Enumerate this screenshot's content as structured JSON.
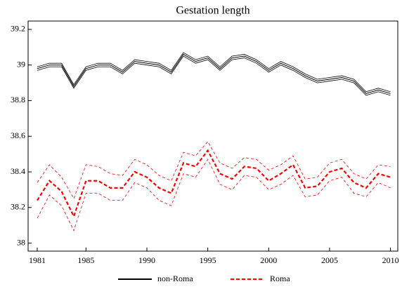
{
  "chart_data": {
    "type": "line",
    "title": "Gestation length",
    "x": [
      1981,
      1982,
      1983,
      1984,
      1985,
      1986,
      1987,
      1988,
      1989,
      1990,
      1991,
      1992,
      1993,
      1994,
      1995,
      1996,
      1997,
      1998,
      1999,
      2000,
      2001,
      2002,
      2003,
      2004,
      2005,
      2006,
      2007,
      2008,
      2009,
      2010
    ],
    "xlim": [
      1980.25,
      2010.6
    ],
    "xticks": [
      1981,
      1985,
      1990,
      1995,
      2000,
      2005,
      2010
    ],
    "ylim": [
      37.955,
      39.247
    ],
    "yticks": [
      38,
      38.2,
      38.4,
      38.6,
      38.8,
      39,
      39.2
    ],
    "legend": "bottom",
    "series": [
      {
        "name": "non-Roma",
        "color": "#000000",
        "dashed": false,
        "values": [
          38.98,
          39.0,
          39.0,
          38.88,
          38.98,
          39.0,
          39.0,
          38.96,
          39.02,
          39.01,
          39.0,
          38.96,
          39.06,
          39.02,
          39.04,
          38.98,
          39.04,
          39.05,
          39.02,
          38.97,
          39.01,
          38.98,
          38.94,
          38.91,
          38.92,
          38.93,
          38.91,
          38.84,
          38.86,
          38.84
        ],
        "upper": [
          38.99,
          39.01,
          39.01,
          38.89,
          38.99,
          39.01,
          39.01,
          38.97,
          39.03,
          39.02,
          39.01,
          38.97,
          39.07,
          39.03,
          39.05,
          38.99,
          39.05,
          39.06,
          39.03,
          38.98,
          39.02,
          38.99,
          38.95,
          38.92,
          38.93,
          38.94,
          38.92,
          38.85,
          38.87,
          38.85
        ],
        "lower": [
          38.97,
          38.99,
          38.99,
          38.87,
          38.97,
          38.99,
          38.99,
          38.95,
          39.01,
          39.0,
          38.99,
          38.95,
          39.05,
          39.01,
          39.03,
          38.97,
          39.03,
          39.04,
          39.01,
          38.96,
          39.0,
          38.97,
          38.93,
          38.9,
          38.91,
          38.92,
          38.9,
          38.83,
          38.85,
          38.83
        ]
      },
      {
        "name": "Roma",
        "color": "#ff0000",
        "dashed": true,
        "values": [
          38.24,
          38.35,
          38.29,
          38.15,
          38.35,
          38.35,
          38.31,
          38.31,
          38.4,
          38.37,
          38.31,
          38.28,
          38.45,
          38.43,
          38.52,
          38.39,
          38.36,
          38.43,
          38.42,
          38.35,
          38.39,
          38.44,
          38.31,
          38.32,
          38.4,
          38.42,
          38.34,
          38.31,
          38.39,
          38.37
        ],
        "upper": [
          38.34,
          38.44,
          38.37,
          38.25,
          38.44,
          38.43,
          38.39,
          38.38,
          38.47,
          38.44,
          38.38,
          38.35,
          38.51,
          38.49,
          38.57,
          38.45,
          38.42,
          38.48,
          38.47,
          38.41,
          38.44,
          38.49,
          38.36,
          38.37,
          38.45,
          38.47,
          38.39,
          38.36,
          38.44,
          38.43
        ],
        "lower": [
          38.14,
          38.27,
          38.21,
          38.07,
          38.28,
          38.28,
          38.24,
          38.24,
          38.34,
          38.31,
          38.24,
          38.21,
          38.39,
          38.37,
          38.47,
          38.33,
          38.3,
          38.38,
          38.37,
          38.3,
          38.33,
          38.38,
          38.26,
          38.27,
          38.35,
          38.37,
          38.28,
          38.26,
          38.34,
          38.31
        ]
      }
    ]
  }
}
